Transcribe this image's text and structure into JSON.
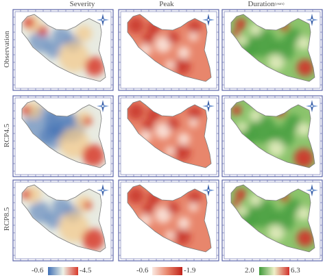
{
  "columns": [
    {
      "title": "Severity",
      "unit": ""
    },
    {
      "title": "Peak",
      "unit": ""
    },
    {
      "title": "Duration",
      "unit": "(years)"
    }
  ],
  "rows": [
    {
      "label": "Observation"
    },
    {
      "label": "RCP4.5"
    },
    {
      "label": "RCP8.5"
    }
  ],
  "legends": [
    {
      "min": "-0.6",
      "max": "-4.5",
      "colors": [
        "#3f6fb5",
        "#eef2e6",
        "#d8392b"
      ]
    },
    {
      "min": "-0.6",
      "max": "-1.9",
      "colors": [
        "#fbeae2",
        "#e8866c",
        "#c0221a"
      ]
    },
    {
      "min": "2.0",
      "max": "6.3",
      "colors": [
        "#3f9a3a",
        "#eef0c8",
        "#d2302a"
      ]
    }
  ],
  "map_elements": {
    "north_arrow": "north-arrow-icon",
    "coordinate_ticks": "frame-tick-marks"
  }
}
